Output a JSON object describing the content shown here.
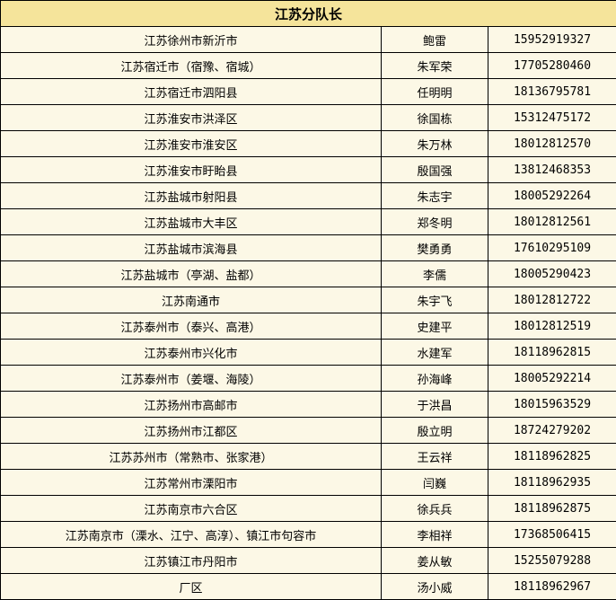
{
  "title": "江苏分队长",
  "rows": [
    {
      "area": "江苏徐州市新沂市",
      "name": "鲍雷",
      "phone": "15952919327"
    },
    {
      "area": "江苏宿迁市（宿豫、宿城）",
      "name": "朱军荣",
      "phone": "17705280460"
    },
    {
      "area": "江苏宿迁市泗阳县",
      "name": "任明明",
      "phone": "18136795781"
    },
    {
      "area": "江苏淮安市洪泽区",
      "name": "徐国栋",
      "phone": "15312475172"
    },
    {
      "area": "江苏淮安市淮安区",
      "name": "朱万林",
      "phone": "18012812570"
    },
    {
      "area": "江苏淮安市盱眙县",
      "name": "殷国强",
      "phone": "13812468353"
    },
    {
      "area": "江苏盐城市射阳县",
      "name": "朱志宇",
      "phone": "18005292264"
    },
    {
      "area": "江苏盐城市大丰区",
      "name": "郑冬明",
      "phone": "18012812561"
    },
    {
      "area": "江苏盐城市滨海县",
      "name": "樊勇勇",
      "phone": "17610295109"
    },
    {
      "area": "江苏盐城市（亭湖、盐都）",
      "name": "李儒",
      "phone": "18005290423"
    },
    {
      "area": "江苏南通市",
      "name": "朱宇飞",
      "phone": "18012812722"
    },
    {
      "area": "江苏泰州市（泰兴、高港）",
      "name": "史建平",
      "phone": "18012812519"
    },
    {
      "area": "江苏泰州市兴化市",
      "name": "水建军",
      "phone": "18118962815"
    },
    {
      "area": "江苏泰州市（姜堰、海陵）",
      "name": "孙海峰",
      "phone": "18005292214"
    },
    {
      "area": "江苏扬州市高邮市",
      "name": "于洪昌",
      "phone": "18015963529"
    },
    {
      "area": "江苏扬州市江都区",
      "name": "殷立明",
      "phone": "18724279202"
    },
    {
      "area": "江苏苏州市（常熟市、张家港）",
      "name": "王云祥",
      "phone": "18118962825"
    },
    {
      "area": "江苏常州市溧阳市",
      "name": "闫巍",
      "phone": "18118962935"
    },
    {
      "area": "江苏南京市六合区",
      "name": "徐兵兵",
      "phone": "18118962875"
    },
    {
      "area": "江苏南京市（溧水、江宁、高淳）、镇江市句容市",
      "name": "李相祥",
      "phone": "17368506415"
    },
    {
      "area": "江苏镇江市丹阳市",
      "name": "姜从敏",
      "phone": "15255079288"
    },
    {
      "area": "厂区",
      "name": "汤小威",
      "phone": "18118962967"
    }
  ]
}
